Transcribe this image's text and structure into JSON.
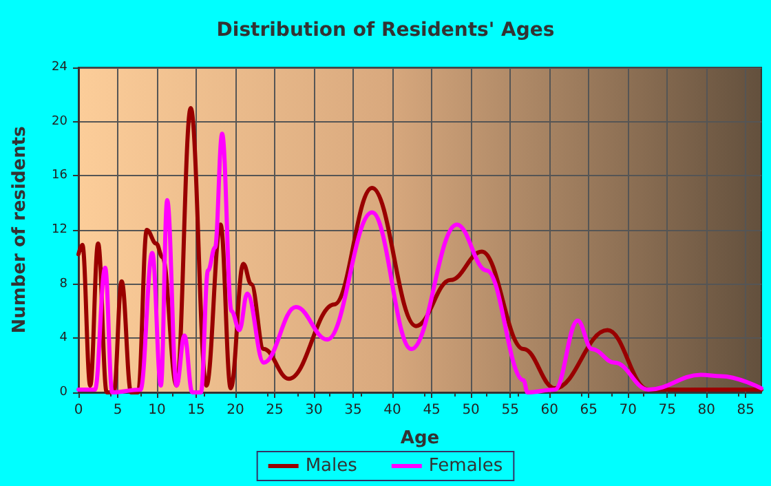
{
  "chart_data": {
    "type": "line",
    "title": "Distribution of Residents' Ages",
    "xlabel": "Age",
    "ylabel": "Number of residents",
    "xlim": [
      0,
      87
    ],
    "xticks": [
      0,
      5,
      10,
      15,
      20,
      25,
      30,
      35,
      40,
      45,
      50,
      55,
      60,
      65,
      70,
      75,
      80,
      85
    ],
    "ylim": [
      0,
      24
    ],
    "yticks": [
      0,
      4,
      8,
      12,
      16,
      20,
      24
    ],
    "grid": true,
    "legend": "bottom",
    "marker": "none",
    "line_style": "solid",
    "series": [
      {
        "name": "Males",
        "color": "#990000",
        "x": [
          0,
          0.5,
          1.5,
          2.5,
          3.6,
          4.5,
          5.5,
          6.7,
          7.6,
          8.7,
          9.9,
          10.7,
          12.5,
          14.3,
          16.3,
          18.1,
          19.4,
          21,
          22,
          23.6,
          26.8,
          32.6,
          37.4,
          43,
          47.4,
          51.4,
          56.7,
          60.7,
          67.4,
          72.6,
          78.5,
          87
        ],
        "values": [
          10.2,
          10.9,
          0.5,
          11,
          0,
          0,
          8.2,
          0,
          0,
          12,
          11,
          10,
          0.5,
          21,
          0.5,
          12.4,
          0.3,
          9.5,
          8,
          3.2,
          1,
          6.5,
          15.1,
          4.9,
          8.3,
          10.4,
          3.2,
          0.3,
          4.6,
          0.2,
          0.2,
          0.2
        ]
      },
      {
        "name": "Females",
        "color": "#ff00ff",
        "x": [
          0,
          2.1,
          3.4,
          4.3,
          7.9,
          9.4,
          10.5,
          11.3,
          12.5,
          13.5,
          14.5,
          15.6,
          16.5,
          17.4,
          18.3,
          19.5,
          20.5,
          21.5,
          23.6,
          27.7,
          31.7,
          37.4,
          42.4,
          48.2,
          52,
          56.7,
          57.2,
          60.7,
          63.6,
          65.4,
          68.3,
          72.6,
          79.3,
          81.9,
          87
        ],
        "values": [
          0.2,
          0.2,
          9.2,
          0,
          0.2,
          10.3,
          0.5,
          14.2,
          0.5,
          4.2,
          0,
          0,
          9,
          10.7,
          19.1,
          6,
          4.6,
          7.3,
          2.2,
          6.3,
          3.9,
          13.3,
          3.2,
          12.4,
          9,
          0.9,
          0,
          0.2,
          5.3,
          3.2,
          2.2,
          0.2,
          1.3,
          1.2,
          0.3
        ]
      }
    ]
  }
}
